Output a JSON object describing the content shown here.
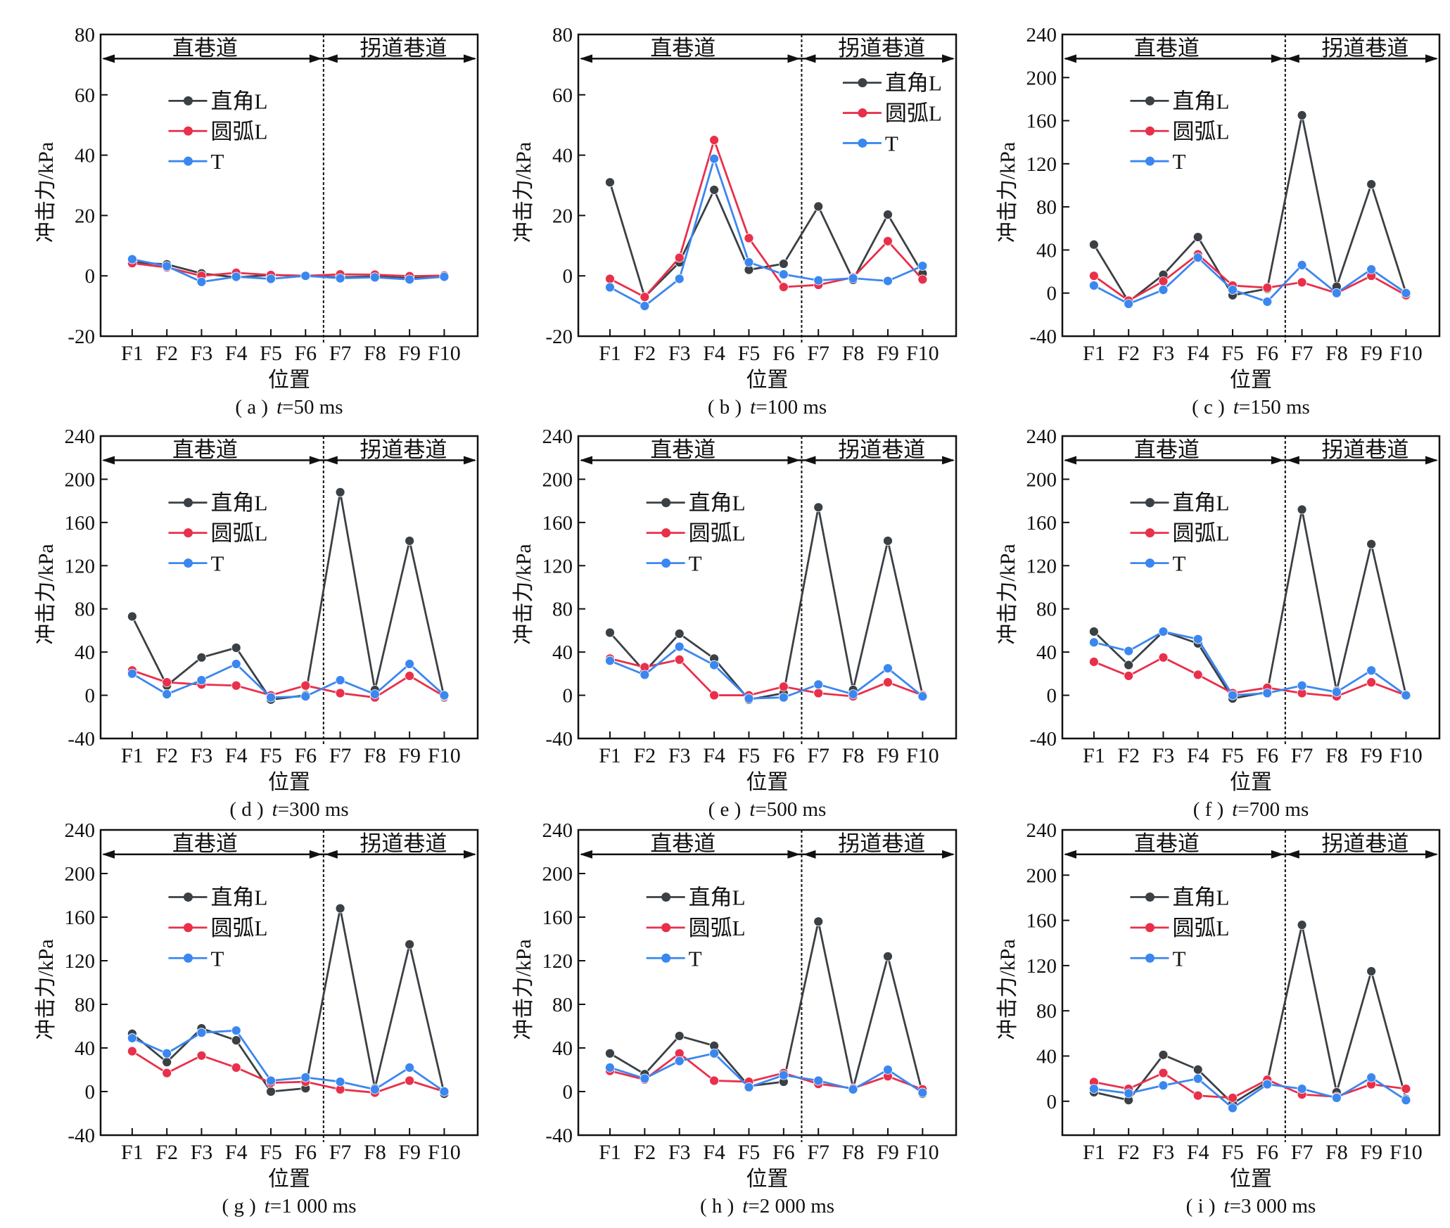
{
  "chart_data": [
    {
      "type": "line",
      "caption_label": "( a )",
      "caption_var": "t",
      "caption_value": "=50 ms",
      "ylim": [
        -20,
        80
      ],
      "yticks": [
        -20,
        0,
        20,
        40,
        60,
        80
      ],
      "legend_position": "top-left",
      "series": [
        {
          "name": "直角L",
          "values": [
            4.5,
            3.8,
            0.8,
            -0.5,
            0.3,
            0,
            -0.5,
            -0.2,
            -0.8,
            -0.3
          ]
        },
        {
          "name": "圆弧L",
          "values": [
            4.2,
            2.8,
            0,
            1,
            0.3,
            0,
            0.5,
            0.4,
            -0.1,
            0.1
          ]
        },
        {
          "name": "T",
          "values": [
            5.5,
            3.2,
            -2,
            -0.3,
            -1,
            0,
            -0.8,
            -0.5,
            -1.2,
            -0.3
          ]
        }
      ]
    },
    {
      "type": "line",
      "caption_label": "( b )",
      "caption_var": "t",
      "caption_value": "=100 ms",
      "ylim": [
        -20,
        80
      ],
      "yticks": [
        -20,
        0,
        20,
        40,
        60,
        80
      ],
      "legend_position": "top-right",
      "series": [
        {
          "name": "直角L",
          "values": [
            31,
            -7,
            4.5,
            28.5,
            2,
            4,
            23,
            -1.3,
            20.3,
            0.8
          ]
        },
        {
          "name": "圆弧L",
          "values": [
            -1,
            -7,
            6,
            45,
            12.5,
            -3.7,
            -3,
            -0.5,
            11.5,
            -1.2
          ]
        },
        {
          "name": "T",
          "values": [
            -3.8,
            -10,
            -1,
            38.8,
            4.5,
            0.5,
            -1.5,
            -0.8,
            -1.7,
            3.3
          ]
        }
      ]
    },
    {
      "type": "line",
      "caption_label": "( c )",
      "caption_var": "t",
      "caption_value": "=150 ms",
      "ylim": [
        -40,
        240
      ],
      "yticks": [
        -40,
        0,
        40,
        80,
        120,
        160,
        200,
        240
      ],
      "legend_position": "top-left",
      "series": [
        {
          "name": "直角L",
          "values": [
            45,
            -8,
            17,
            52,
            -2,
            4,
            165,
            6,
            101,
            0
          ]
        },
        {
          "name": "圆弧L",
          "values": [
            16,
            -7,
            11,
            36,
            7,
            5,
            10,
            0,
            16,
            -2
          ]
        },
        {
          "name": "T",
          "values": [
            7,
            -10,
            3,
            33,
            3,
            -8,
            26,
            0,
            22,
            0
          ]
        }
      ]
    },
    {
      "type": "line",
      "caption_label": "( d )",
      "caption_var": "t",
      "caption_value": "=300 ms",
      "ylim": [
        -40,
        240
      ],
      "yticks": [
        -40,
        0,
        40,
        80,
        120,
        160,
        200,
        240
      ],
      "legend_position": "top-left",
      "series": [
        {
          "name": "直角L",
          "values": [
            73,
            9,
            35,
            44,
            -4,
            0,
            188,
            5,
            143,
            -2
          ]
        },
        {
          "name": "圆弧L",
          "values": [
            23,
            12,
            10,
            9,
            0,
            9,
            2,
            -2,
            18,
            -1
          ]
        },
        {
          "name": "T",
          "values": [
            20,
            1,
            14,
            29,
            -2,
            -1,
            14,
            1,
            29,
            0
          ]
        }
      ]
    },
    {
      "type": "line",
      "caption_label": "( e )",
      "caption_var": "t",
      "caption_value": "=500 ms",
      "ylim": [
        -40,
        240
      ],
      "yticks": [
        -40,
        0,
        40,
        80,
        120,
        160,
        200,
        240
      ],
      "legend_position": "top-left",
      "series": [
        {
          "name": "直角L",
          "values": [
            58,
            22,
            57,
            34,
            -4,
            2,
            174,
            5,
            143,
            0
          ]
        },
        {
          "name": "圆弧L",
          "values": [
            34,
            26,
            33,
            0,
            0,
            8,
            2,
            -1,
            12,
            0
          ]
        },
        {
          "name": "T",
          "values": [
            32,
            19,
            45,
            28,
            -3,
            -2,
            10,
            1,
            25,
            -1
          ]
        }
      ]
    },
    {
      "type": "line",
      "caption_label": "( f )",
      "caption_var": "t",
      "caption_value": "=700 ms",
      "ylim": [
        -40,
        240
      ],
      "yticks": [
        -40,
        0,
        40,
        80,
        120,
        160,
        200,
        240
      ],
      "legend_position": "top-left",
      "series": [
        {
          "name": "直角L",
          "values": [
            59,
            28,
            59,
            48,
            -3,
            3,
            172,
            4,
            140,
            0
          ]
        },
        {
          "name": "圆弧L",
          "values": [
            31,
            18,
            35,
            19,
            2,
            7,
            2,
            -1,
            12,
            0
          ]
        },
        {
          "name": "T",
          "values": [
            49,
            41,
            59,
            52,
            0,
            2,
            9,
            3,
            23,
            0
          ]
        }
      ]
    },
    {
      "type": "line",
      "caption_label": "( g )",
      "caption_var": "t",
      "caption_value": "=1 000 ms",
      "ylim": [
        -40,
        240
      ],
      "yticks": [
        -40,
        0,
        40,
        80,
        120,
        160,
        200,
        240
      ],
      "legend_position": "top-left",
      "series": [
        {
          "name": "直角L",
          "values": [
            53,
            27,
            58,
            47,
            0,
            3,
            168,
            3,
            135,
            -2
          ]
        },
        {
          "name": "圆弧L",
          "values": [
            37,
            17,
            33,
            22,
            8,
            9,
            2,
            -1,
            10,
            0
          ]
        },
        {
          "name": "T",
          "values": [
            49,
            35,
            54,
            56,
            10,
            13,
            9,
            2,
            22,
            0
          ]
        }
      ]
    },
    {
      "type": "line",
      "caption_label": "( h )",
      "caption_var": "t",
      "caption_value": "=2 000 ms",
      "ylim": [
        -40,
        240
      ],
      "yticks": [
        -40,
        0,
        40,
        80,
        120,
        160,
        200,
        240
      ],
      "legend_position": "top-left",
      "series": [
        {
          "name": "直角L",
          "values": [
            35,
            16,
            51,
            42,
            5,
            9,
            156,
            3,
            124,
            -2
          ]
        },
        {
          "name": "圆弧L",
          "values": [
            19,
            11,
            35,
            10,
            9,
            17,
            7,
            3,
            14,
            2
          ]
        },
        {
          "name": "T",
          "values": [
            22,
            12,
            28,
            35,
            4,
            15,
            10,
            2,
            20,
            -1
          ]
        }
      ]
    },
    {
      "type": "line",
      "caption_label": "( i )",
      "caption_var": "t",
      "caption_value": "=3 000 ms",
      "ylim": [
        -30,
        240
      ],
      "yticks": [
        0,
        40,
        80,
        120,
        160,
        200,
        240
      ],
      "legend_position": "top-left",
      "series": [
        {
          "name": "直角L",
          "values": [
            8,
            1,
            41,
            28,
            -2,
            17,
            156,
            8,
            115,
            2
          ]
        },
        {
          "name": "圆弧L",
          "values": [
            17,
            11,
            25,
            5,
            3,
            19,
            6,
            4,
            15,
            11
          ]
        },
        {
          "name": "T",
          "values": [
            11,
            7,
            14,
            20,
            -6,
            15,
            11,
            3,
            21,
            1
          ]
        }
      ]
    }
  ],
  "common": {
    "categories": [
      "F1",
      "F2",
      "F3",
      "F4",
      "F5",
      "F6",
      "F7",
      "F8",
      "F9",
      "F10"
    ],
    "xlabel": "位置",
    "ylabel": "冲击力/kPa",
    "region_left": "直巷道",
    "region_right": "拐道巷道",
    "series_colors": [
      "#3b4045",
      "#e8304b",
      "#3b87f0"
    ]
  }
}
